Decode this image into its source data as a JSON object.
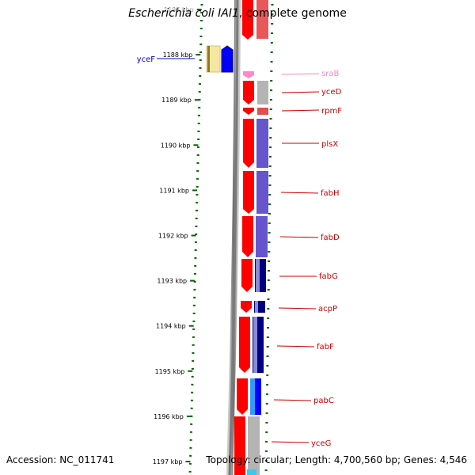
{
  "title": {
    "organism": "Escherichia coli",
    "strain": "IAI1",
    "suffix": ", complete genome"
  },
  "footer": {
    "accession": "Accession: NC_011741",
    "topology": "Topology: circular; Length: 4,700,560 bp; Genes: 4,546"
  },
  "ruler": {
    "ticks": [
      "1187 kbp",
      "1188 kbp",
      "1189 kbp",
      "1190 kbp",
      "1191 kbp",
      "1192 kbp",
      "1193 kbp",
      "1194 kbp",
      "1195 kbp",
      "1196 kbp",
      "1197 kbp"
    ]
  },
  "genes": [
    {
      "name": "yceF",
      "color": "#0000cc"
    },
    {
      "name": "sraB",
      "color": "#ee88cc"
    },
    {
      "name": "yceD",
      "color": "#cc0000"
    },
    {
      "name": "rpmF",
      "color": "#cc0000"
    },
    {
      "name": "plsX",
      "color": "#cc0000"
    },
    {
      "name": "fabH",
      "color": "#cc0000"
    },
    {
      "name": "fabD",
      "color": "#cc0000"
    },
    {
      "name": "fabG",
      "color": "#cc0000"
    },
    {
      "name": "acpP",
      "color": "#cc0000"
    },
    {
      "name": "fabF",
      "color": "#cc0000"
    },
    {
      "name": "pabC",
      "color": "#cc0000"
    },
    {
      "name": "yceG",
      "color": "#cc0000"
    }
  ],
  "colors": {
    "forward_strand": "#ff0000",
    "reverse_strand": "#0000ff",
    "ncrna": "#ff88cc",
    "cog_purple": "#6655cc",
    "cog_navy": "#000080",
    "cog_gray": "#b4b4b4",
    "cog_yellow": "#f5e6a0",
    "cog_cyan": "#3399ff",
    "backbone": "#808080",
    "ruler_green": "#006600"
  }
}
